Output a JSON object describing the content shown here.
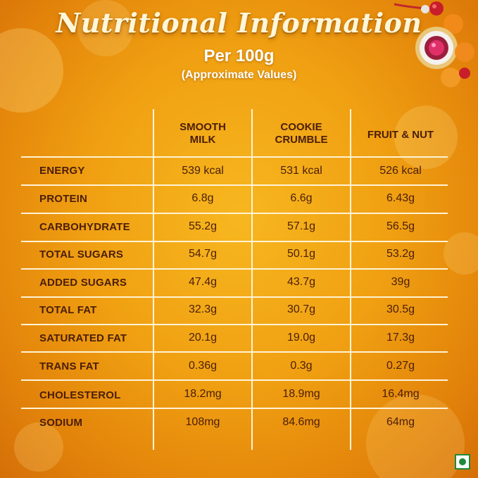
{
  "header": {
    "title": "Nutritional Information",
    "subtitle": "Per 100g",
    "note": "(Approximate Values)"
  },
  "table": {
    "columns": [
      "SMOOTH\nMILK",
      "COOKIE\nCRUMBLE",
      "FRUIT & NUT"
    ],
    "rows": [
      {
        "label": "ENERGY",
        "values": [
          "539 kcal",
          "531 kcal",
          "526 kcal"
        ]
      },
      {
        "label": "PROTEIN",
        "values": [
          "6.8g",
          "6.6g",
          "6.43g"
        ]
      },
      {
        "label": "CARBOHYDRATE",
        "values": [
          "55.2g",
          "57.1g",
          "56.5g"
        ]
      },
      {
        "label": "TOTAL SUGARS",
        "values": [
          "54.7g",
          "50.1g",
          "53.2g"
        ]
      },
      {
        "label": "ADDED SUGARS",
        "values": [
          "47.4g",
          "43.7g",
          "39g"
        ]
      },
      {
        "label": "TOTAL FAT",
        "values": [
          "32.3g",
          "30.7g",
          "30.5g"
        ]
      },
      {
        "label": "SATURATED FAT",
        "values": [
          "20.1g",
          "19.0g",
          "17.3g"
        ]
      },
      {
        "label": "TRANS FAT",
        "values": [
          "0.36g",
          "0.3g",
          "0.27g"
        ]
      },
      {
        "label": "CHOLESTEROL",
        "values": [
          "18.2mg",
          "18.9mg",
          "16.4mg"
        ]
      },
      {
        "label": "SODIUM",
        "values": [
          "108mg",
          "84.6mg",
          "64mg"
        ]
      }
    ]
  },
  "icons": {
    "veg_mark": "veg-symbol-icon",
    "decoration": "rakhi-icon"
  },
  "colors": {
    "background": "#f0a012",
    "text": "#4a1e08",
    "lines": "#fff3d6",
    "veg_green": "#1d8a3a"
  }
}
